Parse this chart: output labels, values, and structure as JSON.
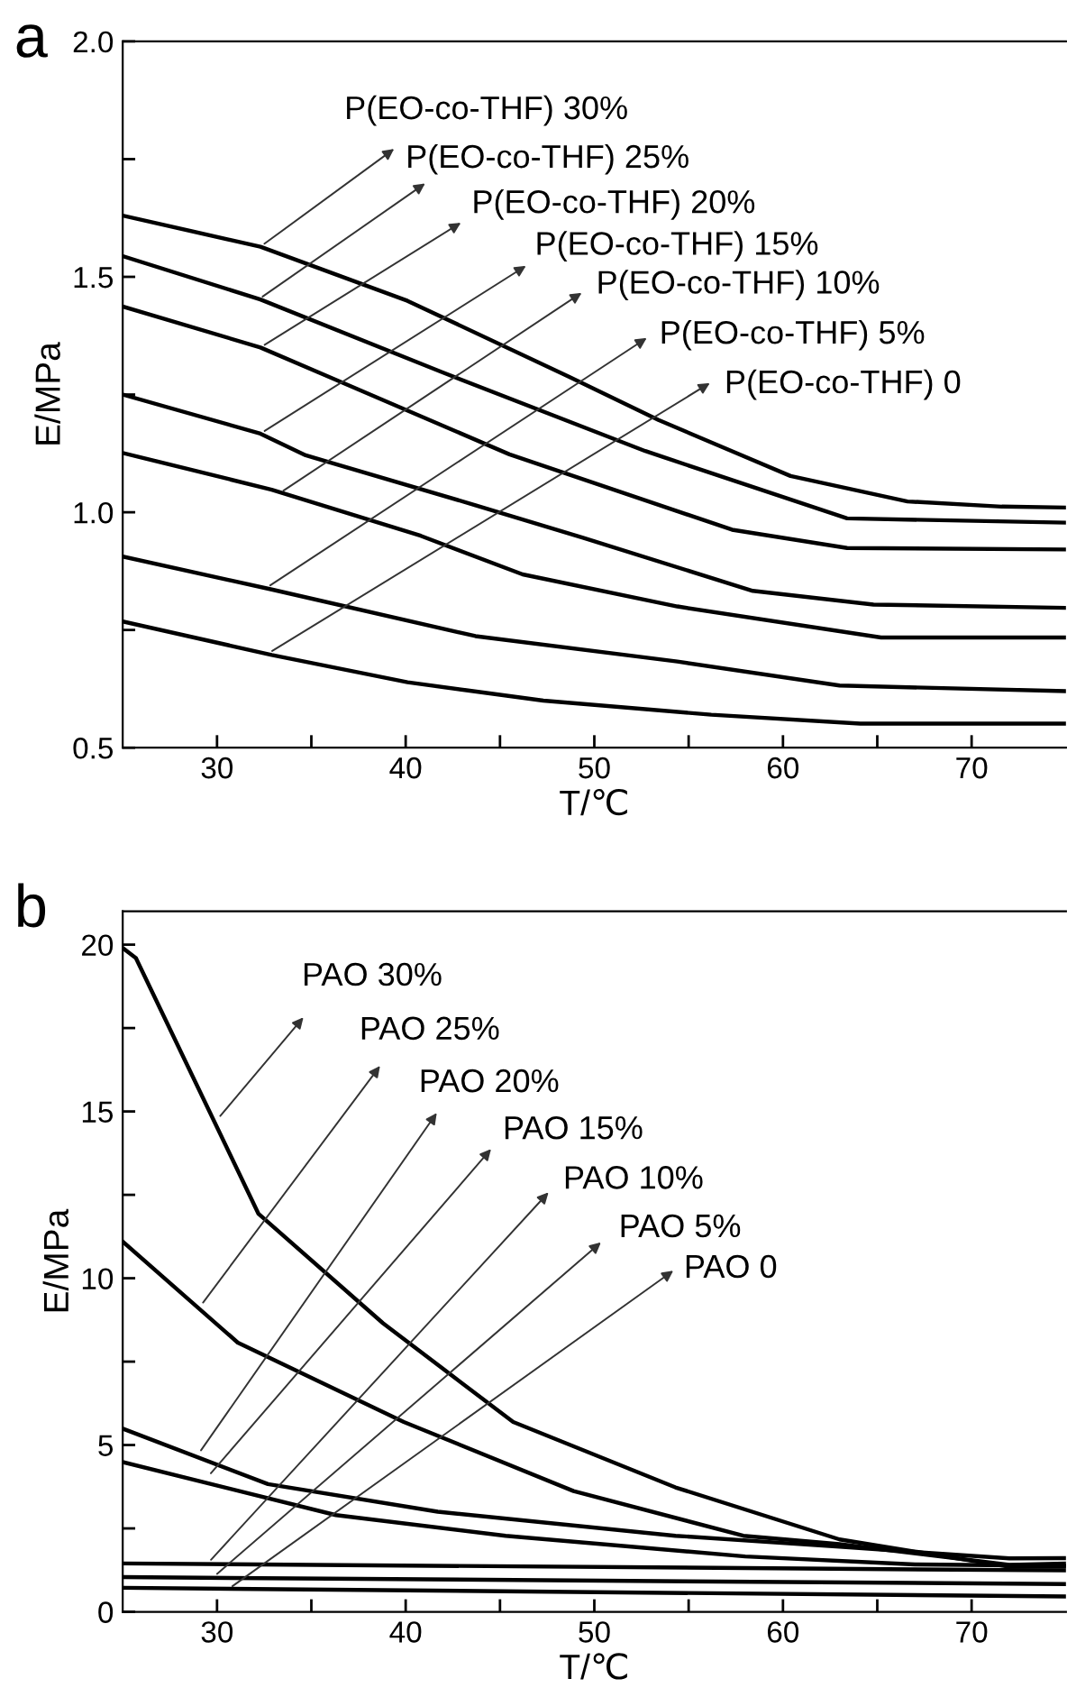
{
  "chart_data": [
    {
      "type": "line",
      "title": "a",
      "xlabel": "T/℃",
      "ylabel": "E/MPa",
      "xlim": [
        25,
        75
      ],
      "ylim": [
        0.5,
        2.0
      ],
      "xticks": [
        30,
        {
          "value": 35,
          "label": null
        },
        40,
        {
          "value": 45,
          "label": null
        },
        50,
        {
          "value": 55,
          "label": null
        },
        60,
        {
          "value": 65,
          "label": null
        },
        70
      ],
      "yticks": [
        0.5,
        {
          "value": 0.75,
          "label": null
        },
        {
          "value": 1,
          "label": "1.0"
        },
        {
          "value": 1.25,
          "label": null
        },
        1.5,
        {
          "value": 1.75,
          "label": null
        },
        {
          "value": 2,
          "label": "2.0"
        }
      ],
      "grid": false,
      "legend": false,
      "marker": "none",
      "line_style": "solid",
      "series": [
        {
          "color": "#000000",
          "x": [
            25,
            32.3,
            40.1,
            48.7,
            53.4,
            60.4,
            66.6,
            71.6,
            75
          ],
          "values": [
            1.63,
            1.564,
            1.449,
            1.287,
            1.196,
            1.077,
            1.023,
            1.012,
            1.01
          ]
        },
        {
          "color": "#000000",
          "x": [
            25,
            32.3,
            41.9,
            52.7,
            63.4,
            75
          ],
          "values": [
            1.544,
            1.452,
            1.298,
            1.13,
            0.987,
            0.978
          ]
        },
        {
          "color": "#000000",
          "x": [
            25,
            32.3,
            35.8,
            45.5,
            57.3,
            63.4,
            75
          ],
          "values": [
            1.437,
            1.35,
            1.29,
            1.123,
            0.963,
            0.924,
            0.921
          ]
        },
        {
          "color": "#000000",
          "x": [
            25,
            32.3,
            34.7,
            43.7,
            49.4,
            58.4,
            64.8,
            75
          ],
          "values": [
            1.25,
            1.167,
            1.121,
            1.015,
            0.946,
            0.833,
            0.804,
            0.797
          ]
        },
        {
          "color": "#000000",
          "x": [
            25,
            32.9,
            40.8,
            46.2,
            54.4,
            65.2,
            75
          ],
          "values": [
            1.126,
            1.048,
            0.95,
            0.868,
            0.8,
            0.734,
            0.734
          ]
        },
        {
          "color": "#000000",
          "x": [
            25,
            32.9,
            43.7,
            54.4,
            63,
            75
          ],
          "values": [
            0.906,
            0.836,
            0.737,
            0.683,
            0.632,
            0.62
          ]
        },
        {
          "color": "#000000",
          "x": [
            25,
            32.9,
            40.1,
            47.3,
            56.2,
            64.1,
            75
          ],
          "values": [
            0.768,
            0.697,
            0.639,
            0.6,
            0.57,
            0.551,
            0.551
          ]
        }
      ],
      "annotations": [
        {
          "text": "P(EO-co-THF) 30%",
          "x": 32.3,
          "y": 1.564
        },
        {
          "text": "P(EO-co-THF) 25%",
          "x": 32.2,
          "y": 1.452
        },
        {
          "text": "P(EO-co-THF) 20%",
          "x": 32.3,
          "y": 1.35
        },
        {
          "text": "P(EO-co-THF) 15%",
          "x": 32.3,
          "y": 1.167
        },
        {
          "text": "P(EO-co-THF) 10%",
          "x": 33.3,
          "y": 1.04
        },
        {
          "text": "P(EO-co-THF) 5%",
          "x": 32.6,
          "y": 0.839
        },
        {
          "text": "P(EO-co-THF) 0",
          "x": 32.7,
          "y": 0.7
        }
      ]
    },
    {
      "type": "line",
      "title": "b",
      "xlabel": "T/℃",
      "ylabel": "E/MPa",
      "xlim": [
        25,
        75
      ],
      "ylim": [
        0,
        21
      ],
      "xticks": [
        30,
        {
          "value": 35,
          "label": null
        },
        40,
        {
          "value": 45,
          "label": null
        },
        50,
        {
          "value": 55,
          "label": null
        },
        60,
        {
          "value": 65,
          "label": null
        },
        70
      ],
      "yticks": [
        0,
        {
          "value": 2.5,
          "label": null
        },
        5,
        {
          "value": 7.5,
          "label": null
        },
        10,
        {
          "value": 12.5,
          "label": null
        },
        15,
        {
          "value": 17.5,
          "label": null
        },
        20
      ],
      "grid": false,
      "legend": false,
      "marker": "none",
      "line_style": "solid",
      "series": [
        {
          "color": "#000000",
          "x": [
            25,
            25.7,
            32.2,
            38.8,
            45.7,
            54.3,
            63,
            72,
            75
          ],
          "values": [
            19.9,
            19.6,
            11.93,
            8.65,
            5.69,
            3.73,
            2.17,
            1.35,
            1.35
          ]
        },
        {
          "color": "#000000",
          "x": [
            25,
            31.1,
            39.9,
            48.9,
            57.9,
            63,
            72,
            75
          ],
          "values": [
            11.1,
            8.07,
            5.69,
            3.62,
            2.28,
            2.03,
            1.41,
            1.45
          ]
        },
        {
          "color": "#000000",
          "x": [
            25,
            32.7,
            41.7,
            54.3,
            63,
            72,
            75
          ],
          "values": [
            5.49,
            3.83,
            3.0,
            2.28,
            1.95,
            1.6,
            1.61
          ]
        },
        {
          "color": "#000000",
          "x": [
            25,
            36.3,
            45.3,
            58,
            67,
            75
          ],
          "values": [
            4.49,
            2.9,
            2.28,
            1.66,
            1.42,
            1.38
          ]
        },
        {
          "color": "#000000",
          "x": [
            25,
            75
          ],
          "values": [
            1.45,
            1.24
          ]
        },
        {
          "color": "#000000",
          "x": [
            25,
            75
          ],
          "values": [
            1.04,
            0.83
          ]
        },
        {
          "color": "#000000",
          "x": [
            25,
            75
          ],
          "values": [
            0.72,
            0.46
          ]
        }
      ],
      "annotations": [
        {
          "text": "PAO 30%",
          "x": 30,
          "y": 14.75
        },
        {
          "text": "PAO 25%",
          "x": 29.1,
          "y": 9.15
        },
        {
          "text": "PAO 20%",
          "x": 29.0,
          "y": 4.72
        },
        {
          "text": "PAO 15%",
          "x": 29.5,
          "y": 4.04
        },
        {
          "text": "PAO 10%",
          "x": 29.5,
          "y": 1.45
        },
        {
          "text": "PAO 5%",
          "x": 29.8,
          "y": 1.04
        },
        {
          "text": "PAO 0",
          "x": 30.6,
          "y": 0.68
        }
      ]
    }
  ]
}
